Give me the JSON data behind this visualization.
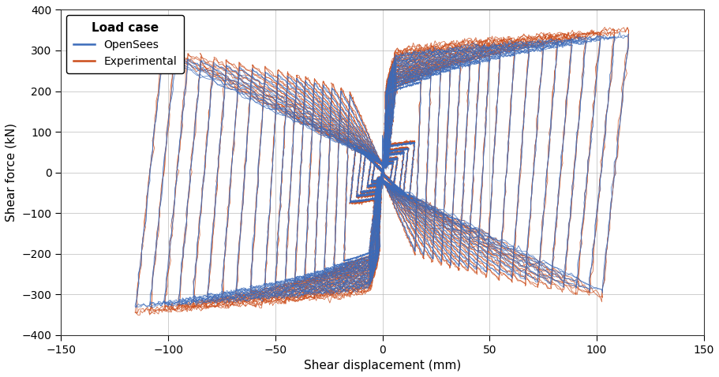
{
  "title": "",
  "xlabel": "Shear displacement (mm)",
  "ylabel": "Shear force (kN)",
  "legend_title": "Load case",
  "legend_opensees": "OpenSees",
  "legend_experimental": "Experimental",
  "xlim": [
    -150,
    150
  ],
  "ylim": [
    -400,
    400
  ],
  "xticks": [
    -150,
    -100,
    -50,
    0,
    50,
    100,
    150
  ],
  "yticks": [
    -400,
    -300,
    -200,
    -100,
    0,
    100,
    200,
    300,
    400
  ],
  "color_opensees": "#3b6bba",
  "color_experimental": "#cc4d1a",
  "bg_color": "#ffffff",
  "grid_color": "#b8b8b8",
  "figsize": [
    9.12,
    4.78
  ],
  "dpi": 100
}
